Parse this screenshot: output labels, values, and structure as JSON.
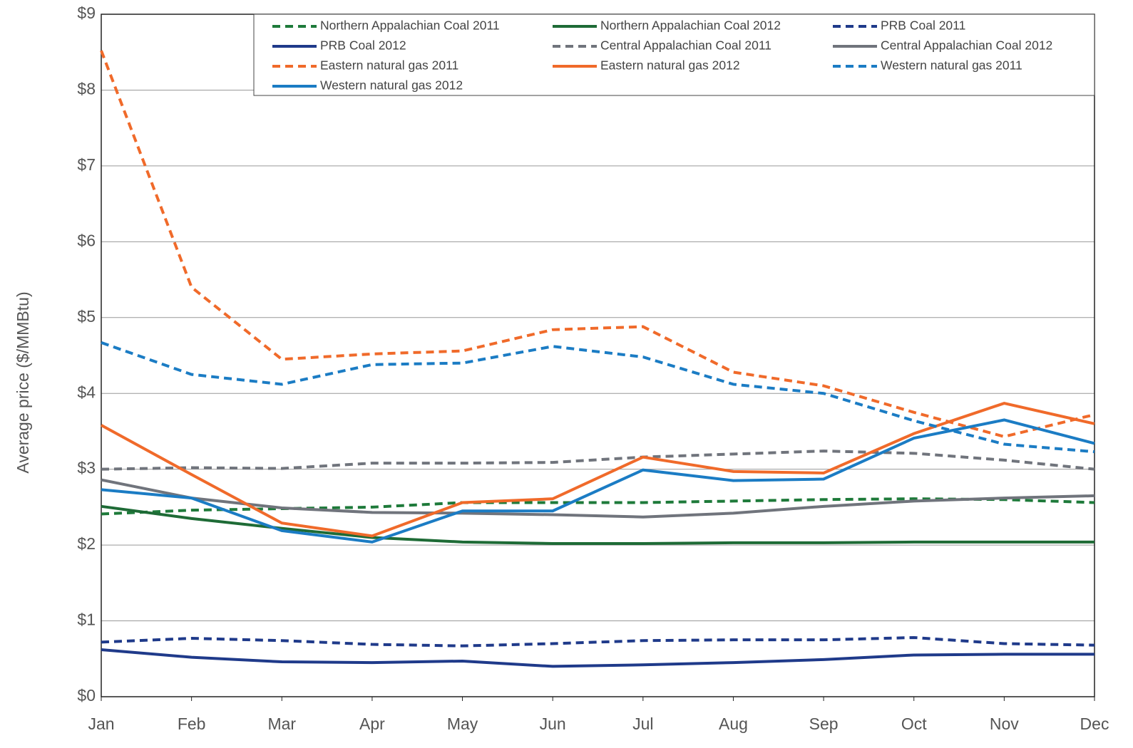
{
  "chart_data": {
    "type": "line",
    "y_label": "Average price ($/MMBtu)",
    "categories": [
      "Jan",
      "Feb",
      "Mar",
      "Apr",
      "May",
      "Jun",
      "Jul",
      "Aug",
      "Sep",
      "Oct",
      "Nov",
      "Dec"
    ],
    "ylim": [
      0,
      9
    ],
    "yticks": [
      {
        "value": 0,
        "label": "$0"
      },
      {
        "value": 1,
        "label": "$1"
      },
      {
        "value": 2,
        "label": "$2"
      },
      {
        "value": 3,
        "label": "$3"
      },
      {
        "value": 4,
        "label": "$4"
      },
      {
        "value": 5,
        "label": "$5"
      },
      {
        "value": 6,
        "label": "$6"
      },
      {
        "value": 7,
        "label": "$7"
      },
      {
        "value": 8,
        "label": "$8"
      },
      {
        "value": 9,
        "label": "$9"
      }
    ],
    "grid": true,
    "legend": "top-right",
    "series": [
      {
        "name": "Northern Appalachian Coal 2011",
        "color": "#1e7a3a",
        "line_style": "dashed",
        "values": [
          2.41,
          2.46,
          2.48,
          2.5,
          2.56,
          2.56,
          2.56,
          2.58,
          2.6,
          2.61,
          2.6,
          2.56
        ]
      },
      {
        "name": "Northern Appalachian Coal 2012",
        "color": "#1e6b36",
        "line_style": "solid",
        "values": [
          2.51,
          2.35,
          2.22,
          2.1,
          2.04,
          2.02,
          2.02,
          2.03,
          2.03,
          2.04,
          2.04,
          2.04
        ]
      },
      {
        "name": "PRB Coal 2011",
        "color": "#1f3a8a",
        "line_style": "dashed",
        "values": [
          0.72,
          0.77,
          0.74,
          0.69,
          0.67,
          0.7,
          0.74,
          0.75,
          0.75,
          0.78,
          0.7,
          0.68
        ]
      },
      {
        "name": "PRB Coal 2012",
        "color": "#1f3a8a",
        "line_style": "solid",
        "values": [
          0.62,
          0.52,
          0.46,
          0.45,
          0.47,
          0.4,
          0.42,
          0.45,
          0.49,
          0.55,
          0.56,
          0.56
        ]
      },
      {
        "name": "Central Appalachian Coal 2011",
        "color": "#70747c",
        "line_style": "dashed",
        "values": [
          3.0,
          3.02,
          3.01,
          3.08,
          3.08,
          3.09,
          3.16,
          3.2,
          3.24,
          3.21,
          3.12,
          3.0
        ]
      },
      {
        "name": "Central Appalachian Coal 2012",
        "color": "#70747c",
        "line_style": "solid",
        "values": [
          2.86,
          2.62,
          2.49,
          2.43,
          2.42,
          2.4,
          2.37,
          2.42,
          2.51,
          2.58,
          2.62,
          2.65
        ]
      },
      {
        "name": "Eastern natural gas 2011",
        "color": "#f06a2a",
        "line_style": "dashed",
        "values": [
          8.52,
          5.4,
          4.45,
          4.52,
          4.56,
          4.84,
          4.88,
          4.28,
          4.1,
          3.75,
          3.43,
          3.72
        ]
      },
      {
        "name": "Eastern natural gas 2012",
        "color": "#f06a2a",
        "line_style": "solid",
        "values": [
          3.58,
          2.93,
          2.29,
          2.12,
          2.56,
          2.61,
          3.16,
          2.97,
          2.95,
          3.47,
          3.87,
          3.6
        ]
      },
      {
        "name": "Western natural gas 2011",
        "color": "#1b7cc4",
        "line_style": "dashed",
        "values": [
          4.67,
          4.25,
          4.12,
          4.38,
          4.4,
          4.62,
          4.48,
          4.12,
          4.0,
          3.64,
          3.33,
          3.23
        ]
      },
      {
        "name": "Western natural gas 2012",
        "color": "#1b7cc4",
        "line_style": "solid",
        "values": [
          2.73,
          2.62,
          2.19,
          2.04,
          2.45,
          2.45,
          2.99,
          2.85,
          2.87,
          3.41,
          3.65,
          3.34
        ]
      }
    ]
  }
}
